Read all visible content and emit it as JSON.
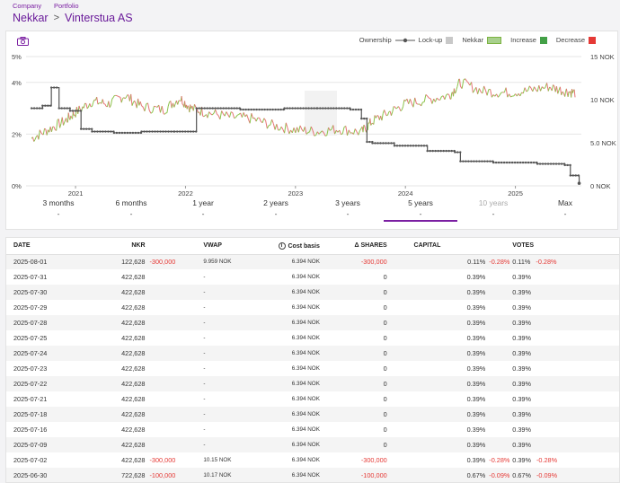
{
  "breadcrumb": {
    "company_label": "Company",
    "portfolio_label": "Portfolio",
    "company": "Nekkar",
    "separator": ">",
    "portfolio": "Vinterstua AS"
  },
  "legend": {
    "ownership": "Ownership",
    "lockup": "Lock-up",
    "nekkar": "Nekkar",
    "increase": "Increase",
    "decrease": "Decrease"
  },
  "colors": {
    "accent": "#7b1fa2",
    "increase": "#43a047",
    "decrease": "#e53935",
    "ownership_line": "#555555",
    "price_green": "#7cb342",
    "price_red": "#e53935"
  },
  "chart_data": {
    "type": "line",
    "title": "",
    "x_ticks": [
      "2021",
      "2022",
      "2023",
      "2024",
      "2025"
    ],
    "y_left_ticks": [
      "5%",
      "4%",
      "2%",
      "0%"
    ],
    "y_right_ticks": [
      "15 NOK",
      "10 NOK",
      "5.0 NOK",
      "0 NOK"
    ],
    "ylim_left": [
      0,
      5
    ],
    "ylim_right": [
      0,
      15
    ],
    "series": [
      {
        "name": "Ownership",
        "axis": "left",
        "x": [
          2020.6,
          2020.7,
          2020.78,
          2020.85,
          2020.95,
          2021.05,
          2021.15,
          2021.35,
          2021.6,
          2021.9,
          2022.1,
          2022.5,
          2022.9,
          2023.2,
          2023.5,
          2023.6,
          2023.65,
          2023.7,
          2023.9,
          2024.2,
          2024.45,
          2024.5,
          2024.8,
          2025.2,
          2025.45,
          2025.5,
          2025.58
        ],
        "values": [
          3.0,
          3.1,
          3.8,
          3.0,
          2.9,
          2.2,
          2.1,
          2.05,
          2.1,
          2.1,
          3.0,
          2.95,
          3.0,
          3.0,
          2.95,
          2.6,
          1.7,
          1.65,
          1.55,
          1.35,
          1.3,
          0.95,
          0.9,
          0.85,
          0.8,
          0.4,
          0.1
        ]
      },
      {
        "name": "Nekkar",
        "axis": "right",
        "x": [
          2020.6,
          2020.75,
          2020.9,
          2021.0,
          2021.15,
          2021.3,
          2021.45,
          2021.6,
          2021.8,
          2021.95,
          2022.05,
          2022.2,
          2022.4,
          2022.6,
          2022.8,
          2023.0,
          2023.2,
          2023.4,
          2023.6,
          2023.7,
          2023.85,
          2024.0,
          2024.2,
          2024.4,
          2024.5,
          2024.7,
          2024.9,
          2025.1,
          2025.3,
          2025.45,
          2025.55
        ],
        "values": [
          5.5,
          6.5,
          7.5,
          8.5,
          9.8,
          9.5,
          10.5,
          9.2,
          8.8,
          10.2,
          9.0,
          8.5,
          8.0,
          7.8,
          7.0,
          6.5,
          6.3,
          6.6,
          6.2,
          7.5,
          8.5,
          9.5,
          10.0,
          10.5,
          12.0,
          11.0,
          10.8,
          11.0,
          11.5,
          11.0,
          10.8
        ]
      }
    ]
  },
  "range_tabs": [
    {
      "label": "3 months",
      "value": "-"
    },
    {
      "label": "6 months",
      "value": "-"
    },
    {
      "label": "1 year",
      "value": "-"
    },
    {
      "label": "2 years",
      "value": "-"
    },
    {
      "label": "3 years",
      "value": "-"
    },
    {
      "label": "5 years",
      "value": "-"
    },
    {
      "label": "10 years",
      "value": "-"
    },
    {
      "label": "Max",
      "value": "-"
    }
  ],
  "table": {
    "headers": {
      "date": "DATE",
      "nkr": "NKR",
      "vwap": "VWAP",
      "cost_basis": "Cost basis",
      "delta_shares": "Δ SHARES",
      "capital": "CAPITAL",
      "votes": "VOTES"
    },
    "rows": [
      {
        "date": "2025-08-01",
        "nkr": "122,628",
        "nkr_change": "-300,000",
        "vwap": "9.959 NOK",
        "cost": "6.394 NOK",
        "delta": "-300,000",
        "capital": "0.11%",
        "capital_change": "-0.28%",
        "votes": "0.11%",
        "votes_change": "-0.28%"
      },
      {
        "date": "2025-07-31",
        "nkr": "422,628",
        "nkr_change": "",
        "vwap": "-",
        "cost": "6.394 NOK",
        "delta": "0",
        "capital": "0.39%",
        "capital_change": "",
        "votes": "0.39%",
        "votes_change": ""
      },
      {
        "date": "2025-07-30",
        "nkr": "422,628",
        "nkr_change": "",
        "vwap": "-",
        "cost": "6.394 NOK",
        "delta": "0",
        "capital": "0.39%",
        "capital_change": "",
        "votes": "0.39%",
        "votes_change": ""
      },
      {
        "date": "2025-07-29",
        "nkr": "422,628",
        "nkr_change": "",
        "vwap": "-",
        "cost": "6.394 NOK",
        "delta": "0",
        "capital": "0.39%",
        "capital_change": "",
        "votes": "0.39%",
        "votes_change": ""
      },
      {
        "date": "2025-07-28",
        "nkr": "422,628",
        "nkr_change": "",
        "vwap": "-",
        "cost": "6.394 NOK",
        "delta": "0",
        "capital": "0.39%",
        "capital_change": "",
        "votes": "0.39%",
        "votes_change": ""
      },
      {
        "date": "2025-07-25",
        "nkr": "422,628",
        "nkr_change": "",
        "vwap": "-",
        "cost": "6.394 NOK",
        "delta": "0",
        "capital": "0.39%",
        "capital_change": "",
        "votes": "0.39%",
        "votes_change": ""
      },
      {
        "date": "2025-07-24",
        "nkr": "422,628",
        "nkr_change": "",
        "vwap": "-",
        "cost": "6.394 NOK",
        "delta": "0",
        "capital": "0.39%",
        "capital_change": "",
        "votes": "0.39%",
        "votes_change": ""
      },
      {
        "date": "2025-07-23",
        "nkr": "422,628",
        "nkr_change": "",
        "vwap": "-",
        "cost": "6.394 NOK",
        "delta": "0",
        "capital": "0.39%",
        "capital_change": "",
        "votes": "0.39%",
        "votes_change": ""
      },
      {
        "date": "2025-07-22",
        "nkr": "422,628",
        "nkr_change": "",
        "vwap": "-",
        "cost": "6.394 NOK",
        "delta": "0",
        "capital": "0.39%",
        "capital_change": "",
        "votes": "0.39%",
        "votes_change": ""
      },
      {
        "date": "2025-07-21",
        "nkr": "422,628",
        "nkr_change": "",
        "vwap": "-",
        "cost": "6.394 NOK",
        "delta": "0",
        "capital": "0.39%",
        "capital_change": "",
        "votes": "0.39%",
        "votes_change": ""
      },
      {
        "date": "2025-07-18",
        "nkr": "422,628",
        "nkr_change": "",
        "vwap": "-",
        "cost": "6.394 NOK",
        "delta": "0",
        "capital": "0.39%",
        "capital_change": "",
        "votes": "0.39%",
        "votes_change": ""
      },
      {
        "date": "2025-07-16",
        "nkr": "422,628",
        "nkr_change": "",
        "vwap": "-",
        "cost": "6.394 NOK",
        "delta": "0",
        "capital": "0.39%",
        "capital_change": "",
        "votes": "0.39%",
        "votes_change": ""
      },
      {
        "date": "2025-07-09",
        "nkr": "422,628",
        "nkr_change": "",
        "vwap": "-",
        "cost": "6.394 NOK",
        "delta": "0",
        "capital": "0.39%",
        "capital_change": "",
        "votes": "0.39%",
        "votes_change": ""
      },
      {
        "date": "2025-07-02",
        "nkr": "422,628",
        "nkr_change": "-300,000",
        "vwap": "10.15 NOK",
        "cost": "6.394 NOK",
        "delta": "-300,000",
        "capital": "0.39%",
        "capital_change": "-0.28%",
        "votes": "0.39%",
        "votes_change": "-0.28%"
      },
      {
        "date": "2025-06-30",
        "nkr": "722,628",
        "nkr_change": "-100,000",
        "vwap": "10.17 NOK",
        "cost": "6.394 NOK",
        "delta": "-100,000",
        "capital": "0.67%",
        "capital_change": "-0.09%",
        "votes": "0.67%",
        "votes_change": "-0.09%"
      }
    ]
  }
}
